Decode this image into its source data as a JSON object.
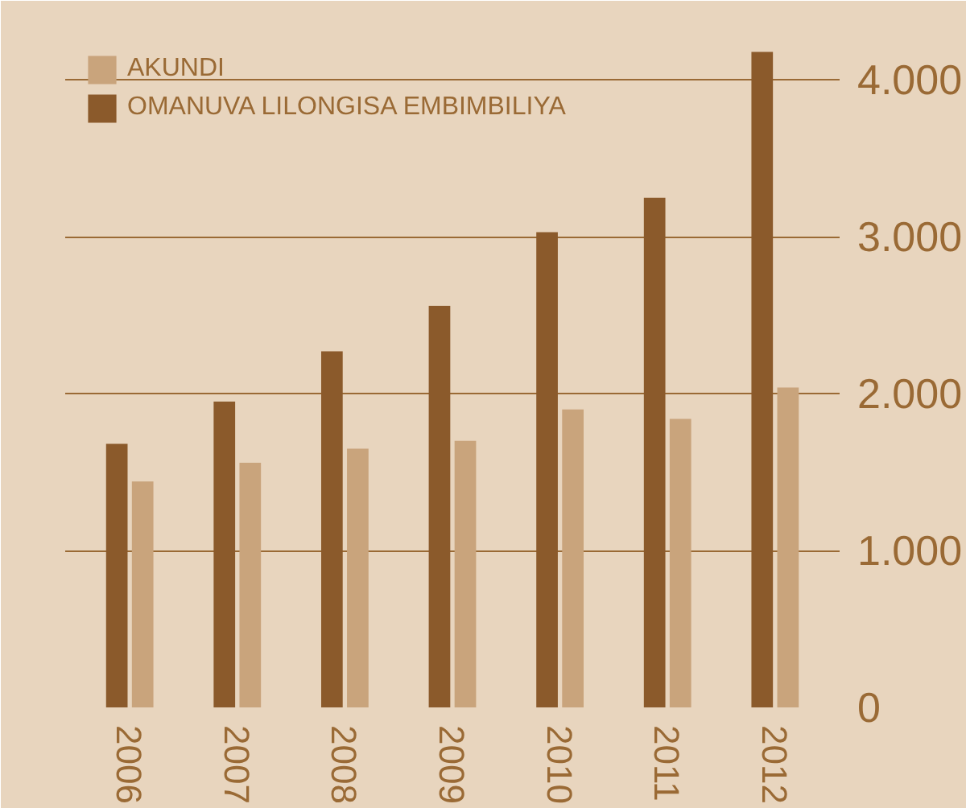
{
  "chart_data": {
    "type": "bar",
    "categories": [
      "2006",
      "2007",
      "2008",
      "2009",
      "2010",
      "2011",
      "2012"
    ],
    "series": [
      {
        "name": "AKUNDI",
        "color": "#c9a47c",
        "values": [
          1440,
          1560,
          1650,
          1700,
          1900,
          1840,
          2040
        ]
      },
      {
        "name": "OMANUVA LILONGISA EMBIMBILIYA",
        "color": "#8b5a2b",
        "values": [
          1680,
          1950,
          2270,
          2560,
          3030,
          3250,
          4180
        ]
      }
    ],
    "ylim": [
      0,
      4300
    ],
    "yticks": [
      {
        "value": 0,
        "label": "0"
      },
      {
        "value": 1000,
        "label": "1.000"
      },
      {
        "value": 2000,
        "label": "2.000"
      },
      {
        "value": 3000,
        "label": "3.000"
      },
      {
        "value": 4000,
        "label": "4.000"
      }
    ],
    "grid": "y",
    "legend": "top left"
  }
}
